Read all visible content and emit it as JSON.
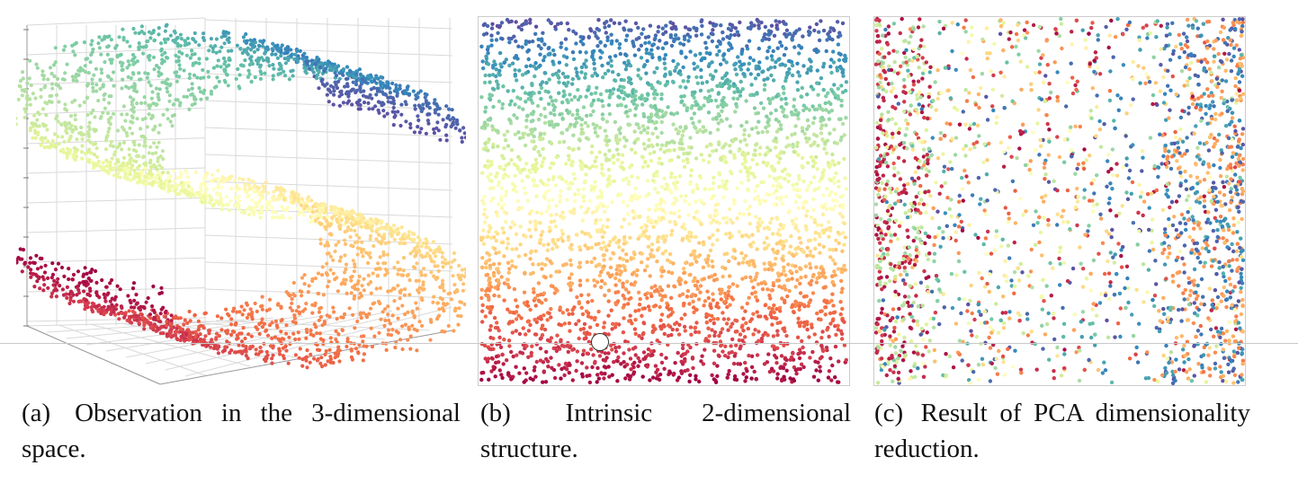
{
  "captions": {
    "a": {
      "label": "(a)",
      "text": "Observation in the 3-dimensional space."
    },
    "b": {
      "label": "(b)",
      "text": "Intrinsic 2-dimensional structure."
    },
    "c": {
      "label": "(c)",
      "text": "Result of PCA dimensionality reduction."
    }
  },
  "colors": {
    "colormap": [
      "#9e0142",
      "#d53e4f",
      "#f46d43",
      "#fdae61",
      "#fee08b",
      "#ffffbf",
      "#e6f598",
      "#abdda4",
      "#66c2a5",
      "#3288bd",
      "#5e4fa2"
    ],
    "grid": "#d9d9d9",
    "frame": "#cccccc"
  },
  "chart_data": [
    {
      "type": "scatter",
      "subtype": "3d",
      "dataset": "S-curve",
      "n_points": 3000,
      "color_by": "position along the curve",
      "title": "",
      "xlabel": "",
      "ylabel": "",
      "grid": true,
      "legend": "none"
    },
    {
      "type": "scatter",
      "dataset": "unrolled S-curve (intrinsic coordinates)",
      "n_points": 3500,
      "color_by": "vertical coordinate",
      "xlim": [
        0,
        1
      ],
      "ylim": [
        0,
        1
      ],
      "title": "",
      "xlabel": "",
      "ylabel": "",
      "grid": false,
      "legend": "none"
    },
    {
      "type": "scatter",
      "dataset": "PCA projection",
      "n_points": 2400,
      "color_by": "same colors as panel (a)",
      "xlim": [
        0,
        1
      ],
      "ylim": [
        0,
        1
      ],
      "title": "",
      "xlabel": "",
      "ylabel": "",
      "grid": false,
      "legend": "none"
    }
  ]
}
